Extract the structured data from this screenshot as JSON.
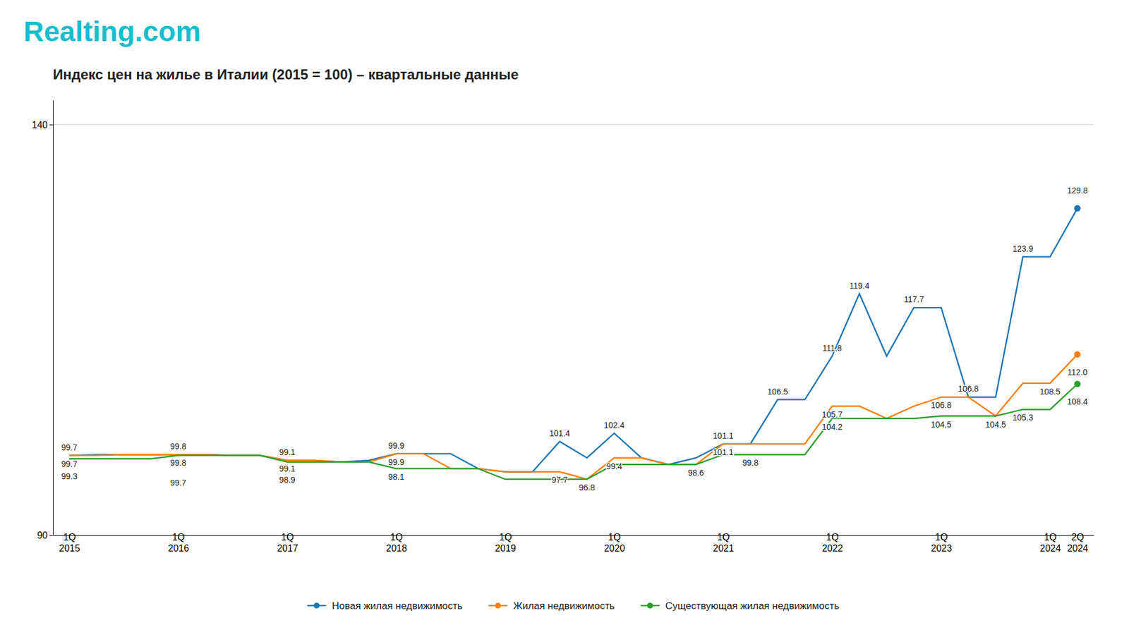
{
  "chart_data": {
    "type": "line",
    "title": "Индекс цен на жилье в Италии (2015 = 100) – квартальные данные",
    "annotations": [
      "Realting.com"
    ],
    "categories": [
      "1Q\n2015",
      null,
      null,
      null,
      "1Q\n2016",
      null,
      null,
      null,
      "1Q\n2017",
      null,
      null,
      null,
      "1Q\n2018",
      null,
      null,
      null,
      "1Q\n2019",
      null,
      null,
      null,
      "1Q\n2020",
      null,
      null,
      null,
      "1Q\n2021",
      null,
      null,
      null,
      "1Q\n2022",
      null,
      null,
      null,
      "1Q\n2023",
      null,
      null,
      null,
      "1Q\n2024",
      "2Q\n2024"
    ],
    "series": [
      {
        "name": "Новая жилая недвижимость",
        "values": [
          99.7,
          99.8,
          99.8,
          99.8,
          99.8,
          99.8,
          99.7,
          99.7,
          99.1,
          99.1,
          98.9,
          99.1,
          99.9,
          99.9,
          99.9,
          98.1,
          97.7,
          97.7,
          101.4,
          99.4,
          102.4,
          99.4,
          98.6,
          99.4,
          101.1,
          101.1,
          106.5,
          106.5,
          111.8,
          119.4,
          111.8,
          117.7,
          117.7,
          106.8,
          106.8,
          123.9,
          123.9,
          129.8
        ],
        "value_labels": [
          "99.7",
          null,
          null,
          null,
          "99.8",
          null,
          null,
          null,
          "99.1",
          null,
          null,
          null,
          "99.9",
          null,
          null,
          null,
          null,
          null,
          "101.4",
          null,
          "102.4",
          null,
          null,
          null,
          "101.1",
          null,
          "106.5",
          null,
          "111.8",
          "119.4",
          null,
          "117.7",
          null,
          "106.8",
          null,
          "123.9",
          null,
          "129.8"
        ]
      },
      {
        "name": "Жилая недвижимость",
        "values": [
          99.7,
          99.7,
          99.8,
          99.8,
          99.8,
          99.8,
          99.7,
          99.7,
          99.1,
          99.1,
          98.9,
          98.9,
          99.9,
          99.9,
          98.1,
          98.1,
          97.7,
          97.7,
          97.7,
          96.8,
          99.4,
          99.4,
          98.6,
          98.6,
          101.1,
          101.1,
          101.1,
          101.1,
          105.7,
          105.7,
          104.2,
          105.7,
          106.8,
          106.8,
          104.5,
          108.5,
          108.5,
          112.0
        ],
        "value_labels": [
          "99.7",
          null,
          null,
          null,
          "99.8",
          null,
          null,
          null,
          "99.1",
          null,
          null,
          null,
          "99.9",
          null,
          null,
          null,
          null,
          null,
          "97.7",
          null,
          "99.4",
          null,
          null,
          null,
          "101.1",
          null,
          null,
          null,
          "105.7",
          null,
          null,
          null,
          "106.8",
          null,
          "104.5",
          null,
          "108.5",
          "112.0"
        ]
      },
      {
        "name": "Существующая жилая недвижимость",
        "values": [
          99.3,
          99.3,
          99.3,
          99.3,
          99.7,
          99.7,
          99.7,
          99.7,
          98.9,
          98.9,
          98.9,
          98.9,
          98.1,
          98.1,
          98.1,
          98.1,
          96.8,
          96.8,
          96.8,
          96.8,
          98.6,
          98.6,
          98.6,
          98.6,
          99.8,
          99.8,
          99.8,
          99.8,
          104.2,
          104.2,
          104.2,
          104.2,
          104.5,
          104.5,
          104.5,
          105.3,
          105.3,
          108.4
        ],
        "value_labels": [
          "99.3",
          null,
          null,
          null,
          "99.7",
          null,
          null,
          null,
          "98.9",
          null,
          null,
          null,
          "98.1",
          null,
          null,
          null,
          null,
          null,
          null,
          "96.8",
          null,
          null,
          null,
          "98.6",
          null,
          "99.8",
          null,
          null,
          "104.2",
          null,
          null,
          null,
          "104.5",
          null,
          null,
          "105.3",
          null,
          "108.4"
        ]
      }
    ],
    "ylim": [
      90,
      143
    ],
    "yticks": [
      90,
      140
    ],
    "grid": true,
    "legend": "bottom",
    "data_labels": true
  }
}
